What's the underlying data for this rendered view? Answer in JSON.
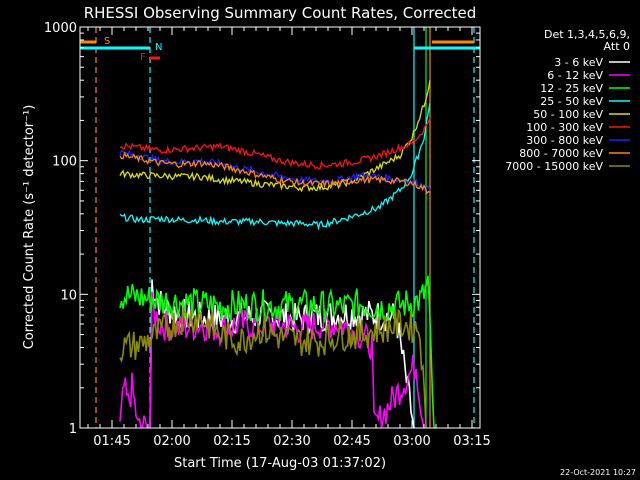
{
  "chart_data": {
    "type": "line",
    "title": "RHESSI Observing Summary Count Rates, Corrected",
    "xlabel": "Start Time (17-Aug-03 01:37:02)",
    "ylabel": "Corrected Count Rate (s⁻¹ detector⁻¹)",
    "yscale": "log",
    "xlim_min": [
      0,
      100
    ],
    "ylim": [
      1,
      1000
    ],
    "x_ticks": [
      {
        "t": 8,
        "label": "01:45"
      },
      {
        "t": 23,
        "label": "02:00"
      },
      {
        "t": 38,
        "label": "02:15"
      },
      {
        "t": 53,
        "label": "02:30"
      },
      {
        "t": 68,
        "label": "02:45"
      },
      {
        "t": 83,
        "label": "03:00"
      },
      {
        "t": 98,
        "label": "03:15"
      }
    ],
    "y_ticks": [
      {
        "v": 1,
        "label": "1"
      },
      {
        "v": 10,
        "label": "10"
      },
      {
        "v": 100,
        "label": "100"
      },
      {
        "v": 1000,
        "label": "1000"
      }
    ],
    "legend_header": [
      "Det 1,3,4,5,6,9,",
      "Att 0"
    ],
    "series": [
      {
        "name": "3 - 6 keV",
        "color": "#ffffff",
        "x": [
          17.5,
          18,
          19,
          21,
          24,
          28,
          33,
          38,
          43,
          48,
          53,
          58,
          63,
          68,
          73,
          79,
          83.5
        ],
        "y": [
          1,
          12.5,
          9.5,
          8,
          7.3,
          6.8,
          6.6,
          6.6,
          6.8,
          7,
          6.5,
          6.8,
          7,
          7.2,
          7,
          6.8,
          1
        ]
      },
      {
        "name": "6 - 12 keV",
        "color": "#ff00ff",
        "x": [
          10,
          11,
          12,
          13,
          14,
          14.5,
          17.5,
          18,
          20,
          25,
          30,
          35,
          40,
          45,
          50,
          55,
          60,
          65,
          70,
          73,
          73.5,
          84,
          86
        ],
        "y": [
          1,
          2,
          1.5,
          2,
          1.3,
          1,
          1,
          8,
          6,
          5.5,
          6,
          5.5,
          6,
          5.8,
          6,
          5.5,
          6,
          6,
          5,
          4.2,
          1,
          3,
          1
        ]
      },
      {
        "name": "12 - 25 keV",
        "color": "#00ff00",
        "x": [
          10,
          15,
          20,
          25,
          30,
          35,
          40,
          45,
          50,
          55,
          60,
          65,
          70,
          75,
          80,
          85,
          86,
          87,
          88.5
        ],
        "y": [
          9.8,
          9.5,
          9,
          8.7,
          8.5,
          8.2,
          8.3,
          8.3,
          8.2,
          8.3,
          8.2,
          8,
          8.5,
          8,
          8.3,
          9,
          10,
          12,
          1
        ]
      },
      {
        "name": "25 - 50 keV",
        "color": "#00ffff",
        "x": [
          10,
          15,
          20,
          25,
          30,
          35,
          40,
          45,
          50,
          55,
          60,
          65,
          70,
          75,
          80,
          83,
          86,
          87.5
        ],
        "y": [
          38,
          36,
          37,
          36,
          36,
          35,
          35,
          35,
          34,
          34,
          33,
          36,
          40,
          45,
          60,
          80,
          150,
          270
        ]
      },
      {
        "name": "50 - 100 keV",
        "color": "#dddd00",
        "x": [
          10,
          15,
          20,
          25,
          30,
          35,
          40,
          45,
          50,
          55,
          60,
          65,
          70,
          75,
          80,
          83,
          86,
          87.5
        ],
        "y": [
          80,
          78,
          77,
          76,
          76,
          72,
          70,
          67,
          65,
          63,
          63,
          66,
          75,
          90,
          110,
          150,
          260,
          400
        ]
      },
      {
        "name": "100 - 300 keV",
        "color": "#ff1010",
        "x": [
          10,
          15,
          20,
          25,
          30,
          35,
          40,
          45,
          50,
          55,
          60,
          65,
          70,
          75,
          80,
          83,
          86,
          87.5
        ],
        "y": [
          130,
          125,
          120,
          122,
          125,
          128,
          120,
          110,
          100,
          95,
          92,
          95,
          100,
          110,
          125,
          135,
          170,
          210
        ]
      },
      {
        "name": "300 - 800 keV",
        "color": "#2020ff",
        "x": [
          10,
          15,
          20,
          25,
          30,
          35,
          40,
          45,
          50,
          55,
          60,
          65,
          70,
          75,
          80,
          83,
          86,
          87.5
        ],
        "y": [
          115,
          108,
          100,
          98,
          100,
          95,
          88,
          82,
          76,
          72,
          70,
          72,
          78,
          76,
          72,
          70,
          64,
          60
        ]
      },
      {
        "name": "800 - 7000 keV",
        "color": "#ff8800",
        "x": [
          10,
          15,
          20,
          25,
          30,
          35,
          40,
          45,
          50,
          55,
          60,
          65,
          70,
          75,
          80,
          83,
          86,
          87.5
        ],
        "y": [
          110,
          103,
          96,
          94,
          96,
          92,
          85,
          78,
          72,
          68,
          67,
          68,
          72,
          72,
          70,
          68,
          62,
          58
        ]
      },
      {
        "name": "7000 - 15000 keV",
        "color": "#8b8b00",
        "x": [
          10,
          15,
          20,
          25,
          30,
          35,
          40,
          45,
          50,
          55,
          60,
          65,
          70,
          75,
          80,
          85,
          86.5
        ],
        "y": [
          4,
          4.2,
          5.2,
          6.5,
          6.8,
          5,
          4.5,
          5.5,
          4.8,
          4.5,
          4.5,
          5,
          5,
          5.5,
          6,
          5.5,
          1
        ]
      }
    ],
    "markers": [
      {
        "label": "S",
        "color": "#ff8800",
        "t": 4
      },
      {
        "label": "N",
        "color": "#00ffff",
        "t": 17.5
      },
      {
        "label": "F",
        "color": "#ff1010",
        "t": 17.5
      }
    ],
    "vlines": [
      {
        "t": 4,
        "color": "#ff8800",
        "style": "dashed"
      },
      {
        "t": 17.5,
        "color": "#00ffff",
        "style": "dashed"
      },
      {
        "t": 83.5,
        "color": "#00ffff",
        "style": "solid"
      },
      {
        "t": 86.5,
        "color": "#00ff00",
        "style": "solid"
      },
      {
        "t": 87.5,
        "color": "#ff8800",
        "style": "solid"
      },
      {
        "t": 98.5,
        "color": "#00ffff",
        "style": "dashed"
      }
    ],
    "state_bars": [
      {
        "color": "#ff8800",
        "t0": 0,
        "t1": 4,
        "level": "S"
      },
      {
        "color": "#ff8800",
        "t0": 88,
        "t1": 98.5,
        "level": "S"
      },
      {
        "color": "#00ffff",
        "t0": 0,
        "t1": 17.5,
        "level": "N"
      },
      {
        "color": "#00ffff",
        "t0": 83.5,
        "t1": 100,
        "level": "N"
      },
      {
        "color": "#ff1010",
        "t0": 17.5,
        "t1": 20,
        "level": "F"
      }
    ]
  },
  "footer_date": "22-Oct-2021 10:27"
}
